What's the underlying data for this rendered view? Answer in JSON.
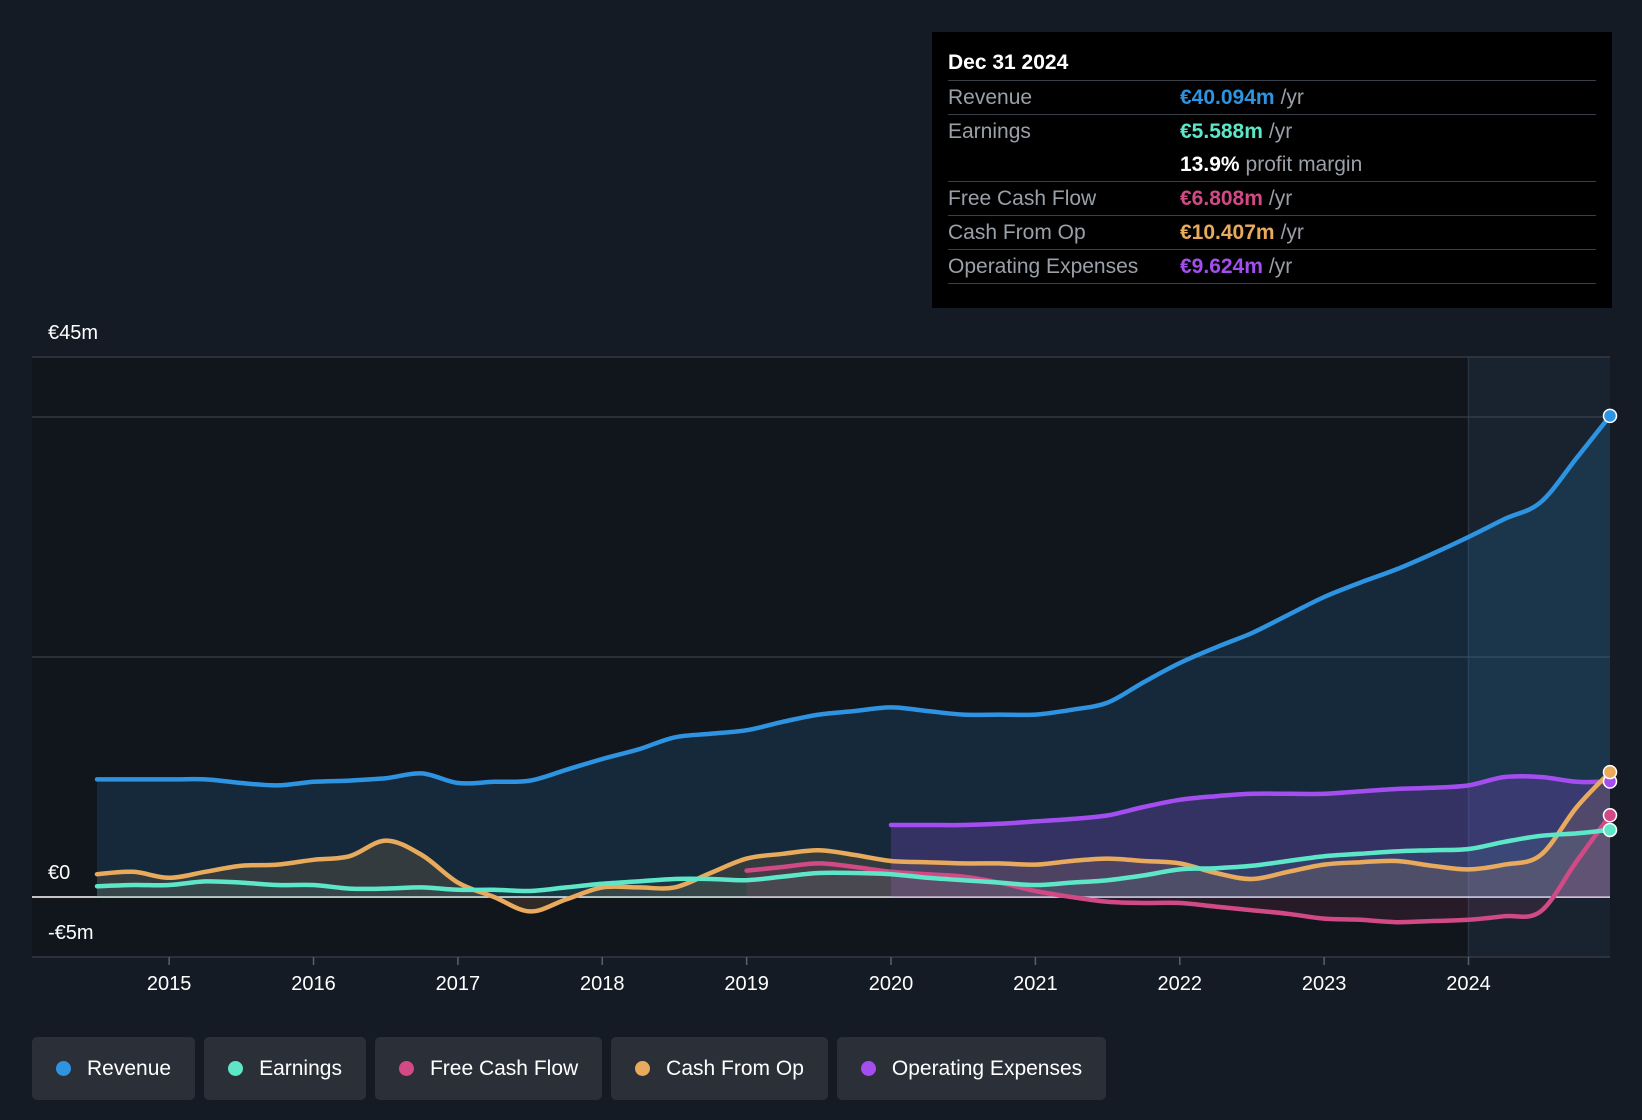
{
  "tooltip": {
    "date": "Dec 31 2024",
    "rows": [
      {
        "label": "Revenue",
        "value": "€40.094m",
        "unit": "/yr",
        "color": "#2e93e0"
      },
      {
        "label": "Earnings",
        "value": "€5.588m",
        "unit": "/yr",
        "color": "#5ee6c8"
      },
      {
        "label": "",
        "value": "13.9%",
        "unit": "profit margin",
        "color": "#ffffff"
      },
      {
        "label": "Free Cash Flow",
        "value": "€6.808m",
        "unit": "/yr",
        "color": "#d14a86"
      },
      {
        "label": "Cash From Op",
        "value": "€10.407m",
        "unit": "/yr",
        "color": "#e8aa5c"
      },
      {
        "label": "Operating Expenses",
        "value": "€9.624m",
        "unit": "/yr",
        "color": "#a44ef0"
      }
    ]
  },
  "legend": [
    {
      "label": "Revenue",
      "color": "#2e93e0"
    },
    {
      "label": "Earnings",
      "color": "#5ee6c8"
    },
    {
      "label": "Free Cash Flow",
      "color": "#d14a86"
    },
    {
      "label": "Cash From Op",
      "color": "#e8aa5c"
    },
    {
      "label": "Operating Expenses",
      "color": "#a44ef0"
    }
  ],
  "chart_data": {
    "type": "line",
    "title": "",
    "xlabel": "",
    "ylabel": "",
    "y_ticks": [
      {
        "value": 45,
        "label": "€45m"
      },
      {
        "value": 0,
        "label": "€0"
      },
      {
        "value": -5,
        "label": "-€5m"
      }
    ],
    "ylim": [
      -5,
      45
    ],
    "xlim": [
      2014.05,
      2024.98
    ],
    "x_ticks": [
      2015,
      2016,
      2017,
      2018,
      2019,
      2020,
      2021,
      2022,
      2023,
      2024
    ],
    "x_tick_labels": [
      "2015",
      "2016",
      "2017",
      "2018",
      "2019",
      "2020",
      "2021",
      "2022",
      "2023",
      "2024"
    ],
    "highlight_start": 2024.0,
    "series": [
      {
        "name": "Revenue",
        "color": "#2e93e0",
        "points": [
          [
            2014.5,
            9.8
          ],
          [
            2015.0,
            9.8
          ],
          [
            2015.25,
            9.8
          ],
          [
            2015.5,
            9.5
          ],
          [
            2015.75,
            9.3
          ],
          [
            2016.0,
            9.6
          ],
          [
            2016.25,
            9.7
          ],
          [
            2016.5,
            9.9
          ],
          [
            2016.75,
            10.3
          ],
          [
            2017.0,
            9.5
          ],
          [
            2017.25,
            9.6
          ],
          [
            2017.5,
            9.7
          ],
          [
            2017.75,
            10.6
          ],
          [
            2018.0,
            11.5
          ],
          [
            2018.25,
            12.3
          ],
          [
            2018.5,
            13.3
          ],
          [
            2018.75,
            13.6
          ],
          [
            2019.0,
            13.9
          ],
          [
            2019.25,
            14.6
          ],
          [
            2019.5,
            15.2
          ],
          [
            2019.75,
            15.5
          ],
          [
            2020.0,
            15.8
          ],
          [
            2020.25,
            15.5
          ],
          [
            2020.5,
            15.2
          ],
          [
            2020.75,
            15.2
          ],
          [
            2021.0,
            15.2
          ],
          [
            2021.25,
            15.6
          ],
          [
            2021.5,
            16.2
          ],
          [
            2021.75,
            17.9
          ],
          [
            2022.0,
            19.5
          ],
          [
            2022.25,
            20.8
          ],
          [
            2022.5,
            22.0
          ],
          [
            2022.75,
            23.5
          ],
          [
            2023.0,
            25.0
          ],
          [
            2023.25,
            26.2
          ],
          [
            2023.5,
            27.3
          ],
          [
            2023.75,
            28.6
          ],
          [
            2024.0,
            30.0
          ],
          [
            2024.25,
            31.5
          ],
          [
            2024.5,
            32.9
          ],
          [
            2024.75,
            36.6
          ],
          [
            2024.98,
            40.094
          ]
        ]
      },
      {
        "name": "Earnings",
        "color": "#5ee6c8",
        "points": [
          [
            2014.5,
            0.9
          ],
          [
            2014.75,
            1.0
          ],
          [
            2015.0,
            1.0
          ],
          [
            2015.25,
            1.3
          ],
          [
            2015.5,
            1.2
          ],
          [
            2015.75,
            1.0
          ],
          [
            2016.0,
            1.0
          ],
          [
            2016.25,
            0.7
          ],
          [
            2016.5,
            0.7
          ],
          [
            2016.75,
            0.8
          ],
          [
            2017.0,
            0.6
          ],
          [
            2017.25,
            0.6
          ],
          [
            2017.5,
            0.5
          ],
          [
            2017.75,
            0.8
          ],
          [
            2018.0,
            1.1
          ],
          [
            2018.25,
            1.3
          ],
          [
            2018.5,
            1.5
          ],
          [
            2018.75,
            1.5
          ],
          [
            2019.0,
            1.4
          ],
          [
            2019.25,
            1.7
          ],
          [
            2019.5,
            2.0
          ],
          [
            2019.75,
            2.0
          ],
          [
            2020.0,
            1.9
          ],
          [
            2020.25,
            1.6
          ],
          [
            2020.5,
            1.4
          ],
          [
            2020.75,
            1.2
          ],
          [
            2021.0,
            1.0
          ],
          [
            2021.25,
            1.2
          ],
          [
            2021.5,
            1.4
          ],
          [
            2021.75,
            1.8
          ],
          [
            2022.0,
            2.3
          ],
          [
            2022.25,
            2.4
          ],
          [
            2022.5,
            2.6
          ],
          [
            2022.75,
            3.0
          ],
          [
            2023.0,
            3.4
          ],
          [
            2023.25,
            3.6
          ],
          [
            2023.5,
            3.8
          ],
          [
            2023.75,
            3.9
          ],
          [
            2024.0,
            4.0
          ],
          [
            2024.25,
            4.6
          ],
          [
            2024.5,
            5.1
          ],
          [
            2024.75,
            5.3
          ],
          [
            2024.98,
            5.588
          ]
        ]
      },
      {
        "name": "Free Cash Flow",
        "color": "#d14a86",
        "points": [
          [
            2019.0,
            2.2
          ],
          [
            2019.25,
            2.5
          ],
          [
            2019.5,
            2.8
          ],
          [
            2019.75,
            2.5
          ],
          [
            2020.0,
            2.1
          ],
          [
            2020.25,
            1.9
          ],
          [
            2020.5,
            1.7
          ],
          [
            2020.75,
            1.2
          ],
          [
            2021.0,
            0.5
          ],
          [
            2021.25,
            0.0
          ],
          [
            2021.5,
            -0.4
          ],
          [
            2021.75,
            -0.5
          ],
          [
            2022.0,
            -0.5
          ],
          [
            2022.25,
            -0.8
          ],
          [
            2022.5,
            -1.1
          ],
          [
            2022.75,
            -1.4
          ],
          [
            2023.0,
            -1.8
          ],
          [
            2023.25,
            -1.9
          ],
          [
            2023.5,
            -2.1
          ],
          [
            2023.75,
            -2.0
          ],
          [
            2024.0,
            -1.9
          ],
          [
            2024.25,
            -1.6
          ],
          [
            2024.5,
            -1.2
          ],
          [
            2024.75,
            3.0
          ],
          [
            2024.98,
            6.808
          ]
        ]
      },
      {
        "name": "Cash From Op",
        "color": "#e8aa5c",
        "points": [
          [
            2014.5,
            1.9
          ],
          [
            2014.75,
            2.1
          ],
          [
            2015.0,
            1.6
          ],
          [
            2015.25,
            2.1
          ],
          [
            2015.5,
            2.6
          ],
          [
            2015.75,
            2.7
          ],
          [
            2016.0,
            3.1
          ],
          [
            2016.25,
            3.4
          ],
          [
            2016.5,
            4.7
          ],
          [
            2016.75,
            3.5
          ],
          [
            2017.0,
            1.2
          ],
          [
            2017.25,
            0.0
          ],
          [
            2017.5,
            -1.2
          ],
          [
            2017.75,
            -0.2
          ],
          [
            2018.0,
            0.8
          ],
          [
            2018.25,
            0.8
          ],
          [
            2018.5,
            0.8
          ],
          [
            2018.75,
            2.0
          ],
          [
            2019.0,
            3.2
          ],
          [
            2019.25,
            3.6
          ],
          [
            2019.5,
            3.9
          ],
          [
            2019.75,
            3.5
          ],
          [
            2020.0,
            3.0
          ],
          [
            2020.25,
            2.9
          ],
          [
            2020.5,
            2.8
          ],
          [
            2020.75,
            2.8
          ],
          [
            2021.0,
            2.7
          ],
          [
            2021.25,
            3.0
          ],
          [
            2021.5,
            3.2
          ],
          [
            2021.75,
            3.0
          ],
          [
            2022.0,
            2.8
          ],
          [
            2022.25,
            2.0
          ],
          [
            2022.5,
            1.5
          ],
          [
            2022.75,
            2.1
          ],
          [
            2023.0,
            2.7
          ],
          [
            2023.25,
            2.9
          ],
          [
            2023.5,
            3.0
          ],
          [
            2023.75,
            2.6
          ],
          [
            2024.0,
            2.3
          ],
          [
            2024.25,
            2.7
          ],
          [
            2024.5,
            3.5
          ],
          [
            2024.75,
            7.5
          ],
          [
            2024.98,
            10.407
          ]
        ]
      },
      {
        "name": "Operating Expenses",
        "color": "#a44ef0",
        "points": [
          [
            2020.0,
            6.0
          ],
          [
            2020.25,
            6.0
          ],
          [
            2020.5,
            6.0
          ],
          [
            2020.75,
            6.1
          ],
          [
            2021.0,
            6.3
          ],
          [
            2021.25,
            6.5
          ],
          [
            2021.5,
            6.8
          ],
          [
            2021.75,
            7.5
          ],
          [
            2022.0,
            8.1
          ],
          [
            2022.25,
            8.4
          ],
          [
            2022.5,
            8.6
          ],
          [
            2022.75,
            8.6
          ],
          [
            2023.0,
            8.6
          ],
          [
            2023.25,
            8.8
          ],
          [
            2023.5,
            9.0
          ],
          [
            2023.75,
            9.1
          ],
          [
            2024.0,
            9.3
          ],
          [
            2024.25,
            10.0
          ],
          [
            2024.5,
            10.0
          ],
          [
            2024.75,
            9.6
          ],
          [
            2024.98,
            9.624
          ]
        ]
      }
    ]
  }
}
